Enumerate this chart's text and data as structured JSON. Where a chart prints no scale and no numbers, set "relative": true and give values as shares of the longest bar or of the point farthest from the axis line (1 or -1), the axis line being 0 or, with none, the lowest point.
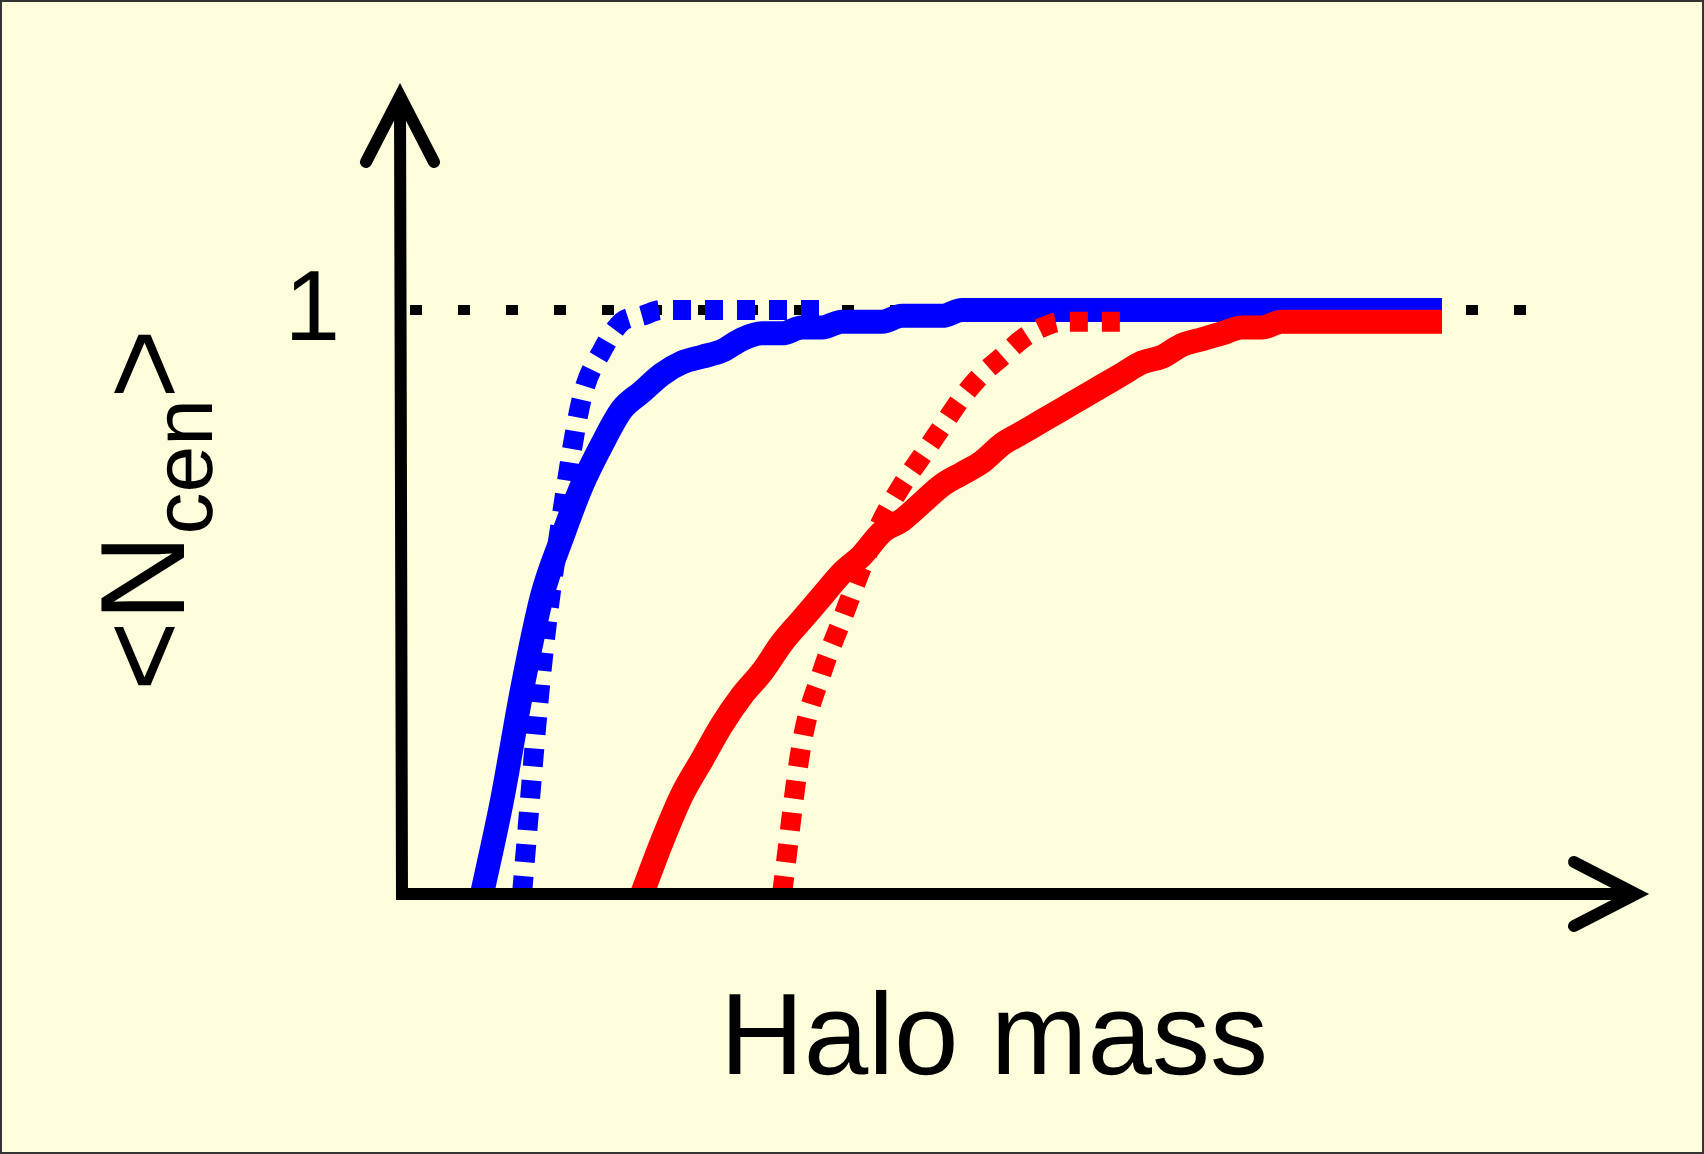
{
  "chart_data": {
    "type": "line",
    "relative": true,
    "xlabel": "Halo mass",
    "ylabel": "<N$_{cen}$>",
    "marker": "none",
    "categories": [
      null,
      null,
      null,
      null,
      null,
      null,
      null,
      null,
      null,
      null,
      null,
      null,
      null,
      null,
      null,
      null,
      null,
      null,
      null,
      null,
      null,
      null,
      null,
      null,
      null,
      null,
      null,
      null,
      null,
      null,
      null,
      null,
      null,
      null,
      null,
      null,
      null,
      null,
      null,
      null,
      null,
      null,
      null,
      null,
      null,
      null,
      null,
      null,
      null,
      null,
      null,
      null,
      null,
      null,
      null,
      null,
      null,
      null,
      null
    ],
    "series": [
      {
        "color": "#0000ff",
        "line_style": "solid",
        "values": [
          null,
          null,
          null,
          null,
          0,
          0.16,
          0.35,
          0.51,
          0.61,
          0.7,
          0.77,
          0.83,
          0.86,
          0.89,
          0.91,
          0.92,
          0.93,
          0.95,
          0.96,
          0.96,
          0.97,
          0.97,
          0.98,
          0.98,
          0.98,
          0.99,
          0.99,
          0.99,
          1,
          1,
          1,
          1,
          1,
          1,
          1,
          1,
          1,
          1,
          1,
          1,
          1,
          1,
          1,
          1,
          1,
          1,
          1,
          1,
          1,
          1,
          1,
          1,
          1,
          null,
          null,
          null,
          null,
          null,
          null
        ]
      },
      {
        "color": "#0000ff",
        "line_style": "dotted",
        "values": [
          null,
          null,
          null,
          null,
          null,
          null,
          0,
          0.39,
          0.65,
          0.85,
          0.93,
          0.98,
          0.99,
          1,
          1,
          1,
          1,
          1,
          1,
          1,
          1,
          1,
          null,
          null,
          null,
          null,
          null,
          null,
          null,
          null,
          null,
          null,
          null,
          null,
          null,
          null,
          null,
          null,
          null,
          null,
          null,
          null,
          null,
          null,
          null,
          null,
          null,
          null,
          null,
          null,
          null,
          null,
          null,
          null,
          null,
          null,
          null,
          null,
          null
        ]
      },
      {
        "color": "#ff0000",
        "line_style": "dotted",
        "values": [
          null,
          null,
          null,
          null,
          null,
          null,
          null,
          null,
          null,
          null,
          null,
          null,
          null,
          null,
          null,
          null,
          null,
          null,
          null,
          0,
          0.26,
          0.38,
          0.47,
          0.56,
          0.64,
          0.7,
          0.75,
          0.8,
          0.85,
          0.89,
          0.92,
          0.95,
          0.97,
          0.98,
          0.98,
          0.98,
          0.98,
          null,
          null,
          null,
          null,
          null,
          null,
          null,
          null,
          null,
          null,
          null,
          null,
          null,
          null,
          null,
          null,
          null,
          null,
          null,
          null,
          null,
          null
        ]
      },
      {
        "color": "#ff0000",
        "line_style": "solid",
        "values": [
          null,
          null,
          null,
          null,
          null,
          null,
          null,
          null,
          null,
          null,
          null,
          null,
          0,
          0.09,
          0.17,
          0.23,
          0.29,
          0.34,
          0.38,
          0.43,
          0.47,
          0.51,
          0.55,
          0.58,
          0.62,
          0.64,
          0.67,
          0.7,
          0.72,
          0.74,
          0.77,
          0.79,
          0.81,
          0.83,
          0.85,
          0.87,
          0.89,
          0.91,
          0.92,
          0.94,
          0.95,
          0.96,
          0.97,
          0.97,
          0.98,
          0.98,
          0.98,
          0.98,
          0.98,
          0.98,
          0.98,
          0.98,
          0.98,
          null,
          null,
          null,
          null,
          null,
          null
        ]
      }
    ],
    "ref_lines": [
      {
        "axis": "y",
        "value": 1,
        "label": "1",
        "color": "#000000",
        "line_style": "dotted"
      }
    ]
  }
}
